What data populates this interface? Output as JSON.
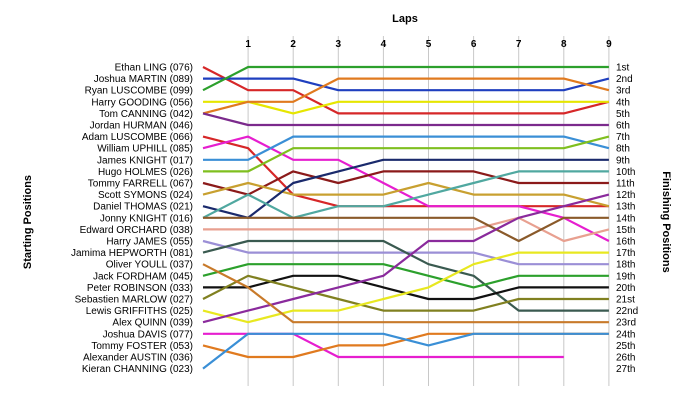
{
  "chart_data": {
    "type": "line",
    "title": "Laps",
    "xlabel": "Laps",
    "ylabel_left": "Starting Positions",
    "ylabel_right": "Finishing Positions",
    "x": [
      0,
      1,
      2,
      3,
      4,
      5,
      6,
      7,
      8,
      9
    ],
    "x_tick_labels": [
      "1",
      "2",
      "3",
      "4",
      "5",
      "6",
      "7",
      "8",
      "9"
    ],
    "finishing_positions": [
      "1st",
      "2nd",
      "3rd",
      "4th",
      "5th",
      "6th",
      "7th",
      "8th",
      "9th",
      "10th",
      "11th",
      "12th",
      "13th",
      "14th",
      "15th",
      "16th",
      "17th",
      "18th",
      "19th",
      "20th",
      "21st",
      "22nd",
      "23rd",
      "24th",
      "25th",
      "26th",
      "27th"
    ],
    "series": [
      {
        "name": "Ethan LING (076)",
        "color": "#d62728",
        "positions": [
          1,
          3,
          3,
          5,
          5,
          5,
          5,
          5,
          5,
          4
        ]
      },
      {
        "name": "Joshua MARTIN (089)",
        "color": "#1f3fbf",
        "positions": [
          2,
          2,
          2,
          3,
          3,
          3,
          3,
          3,
          3,
          2
        ]
      },
      {
        "name": "Ryan LUSCOMBE (099)",
        "color": "#2ca02c",
        "positions": [
          3,
          1,
          1,
          1,
          1,
          1,
          1,
          1,
          1,
          1
        ]
      },
      {
        "name": "Harry GOODING (056)",
        "color": "#e6e600",
        "positions": [
          4,
          4,
          5,
          4,
          4,
          4,
          4,
          4,
          4,
          4
        ]
      },
      {
        "name": "Tom CANNING (042)",
        "color": "#e07a1f",
        "positions": [
          5,
          4,
          4,
          2,
          2,
          2,
          2,
          2,
          2,
          3
        ]
      },
      {
        "name": "Jordan HURMAN (046)",
        "color": "#7b2a8c",
        "positions": [
          5,
          6,
          6,
          6,
          6,
          6,
          6,
          6,
          6,
          6
        ]
      },
      {
        "name": "Adam LUSCOMBE (066)",
        "color": "#d62728",
        "positions": [
          7,
          8,
          12,
          13,
          13,
          13,
          13,
          13,
          13,
          13
        ]
      },
      {
        "name": "William UPHILL (085)",
        "color": "#e61ecf",
        "positions": [
          8,
          7,
          9,
          9,
          11,
          13,
          13,
          13,
          14,
          16
        ]
      },
      {
        "name": "James KNIGHT (017)",
        "color": "#3a8fd6",
        "positions": [
          9,
          9,
          7,
          7,
          7,
          7,
          7,
          7,
          7,
          8
        ]
      },
      {
        "name": "Hugo HOLMES (026)",
        "color": "#7fbf1f",
        "positions": [
          10,
          10,
          8,
          8,
          8,
          8,
          8,
          8,
          8,
          7
        ]
      },
      {
        "name": "Tommy FARRELL (067)",
        "color": "#8b1a1a",
        "positions": [
          11,
          12,
          10,
          11,
          10,
          10,
          10,
          11,
          11,
          11
        ]
      },
      {
        "name": "Scott SYMONS (024)",
        "color": "#c8a030",
        "positions": [
          12,
          11,
          12,
          12,
          12,
          11,
          12,
          12,
          12,
          13
        ]
      },
      {
        "name": "Daniel THOMAS (021)",
        "color": "#1a2a6c",
        "positions": [
          13,
          14,
          11,
          10,
          9,
          9,
          9,
          9,
          9,
          9
        ]
      },
      {
        "name": "Jonny KNIGHT (016)",
        "color": "#50a8a0",
        "positions": [
          14,
          12,
          14,
          13,
          13,
          12,
          11,
          10,
          10,
          10
        ]
      },
      {
        "name": "Edward ORCHARD (038)",
        "color": "#e8a090",
        "positions": [
          15,
          15,
          15,
          15,
          15,
          15,
          15,
          14,
          16,
          15
        ]
      },
      {
        "name": "Harry JAMES (055)",
        "color": "#9b8fd6",
        "positions": [
          16,
          17,
          17,
          17,
          17,
          17,
          17,
          18,
          18,
          18
        ]
      },
      {
        "name": "Jamima HEPWORTH (081)",
        "color": "#3a5a50",
        "positions": [
          17,
          16,
          16,
          16,
          16,
          18,
          19,
          22,
          22,
          22
        ]
      },
      {
        "name": "Oliver YOULL (037)",
        "color": "#8a5a2a",
        "positions": [
          14,
          14,
          14,
          14,
          14,
          14,
          14,
          16,
          14,
          14
        ]
      },
      {
        "name": "Jack FORDHAM (045)",
        "color": "#2ca02c",
        "positions": [
          19,
          18,
          18,
          18,
          18,
          19,
          20,
          19,
          19,
          19
        ]
      },
      {
        "name": "Peter ROBINSON (033)",
        "color": "#111111",
        "positions": [
          20,
          20,
          19,
          19,
          20,
          21,
          21,
          20,
          20,
          20
        ]
      },
      {
        "name": "Sebastien MARLOW (027)",
        "color": "#808020",
        "positions": [
          21,
          19,
          20,
          21,
          22,
          22,
          22,
          21,
          21,
          21
        ]
      },
      {
        "name": "Lewis GRIFFITHS (025)",
        "color": "#e8e820",
        "positions": [
          22,
          23,
          22,
          22,
          21,
          20,
          18,
          17,
          17,
          17
        ]
      },
      {
        "name": "Alex QUINN (039)",
        "color": "#8a2a9c",
        "positions": [
          23,
          22,
          21,
          20,
          19,
          16,
          16,
          14,
          13,
          12
        ]
      },
      {
        "name": "Joshua DAVIS (077)",
        "color": "#c87a2a",
        "positions": [
          18,
          20,
          23,
          23,
          23,
          23,
          23,
          23,
          23,
          23
        ]
      },
      {
        "name": "Tommy FOSTER (053)",
        "color": "#e61ecf",
        "positions": [
          24,
          24,
          24,
          26,
          26,
          26,
          26,
          26,
          26,
          null
        ]
      },
      {
        "name": "Alexander AUSTIN (036)",
        "color": "#e07a1f",
        "positions": [
          25,
          26,
          26,
          25,
          25,
          24,
          24,
          24,
          24,
          24
        ]
      },
      {
        "name": "Kieran CHANNING (023)",
        "color": "#3a8fd6",
        "positions": [
          27,
          24,
          24,
          24,
          24,
          25,
          24,
          24,
          24,
          24
        ]
      }
    ]
  }
}
